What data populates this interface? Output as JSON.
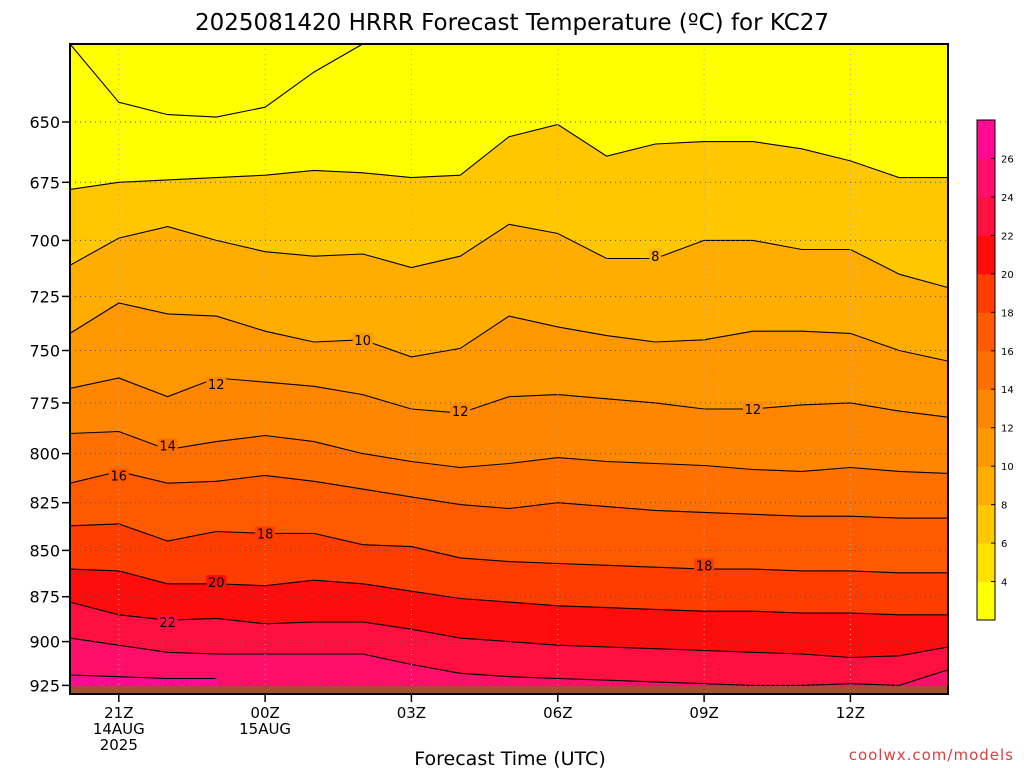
{
  "chart_data": {
    "type": "area",
    "title": "2025081420 HRRR Forecast Temperature (ºC) for KC27",
    "xlabel": "Forecast Time (UTC)",
    "ylabel": "",
    "credit": "coolwx.com/models",
    "x_ticks": [
      {
        "hour": 1,
        "lines": [
          "21Z",
          "14AUG",
          "2025"
        ]
      },
      {
        "hour": 4,
        "lines": [
          "00Z",
          "15AUG"
        ]
      },
      {
        "hour": 7,
        "lines": [
          "03Z"
        ]
      },
      {
        "hour": 10,
        "lines": [
          "06Z"
        ]
      },
      {
        "hour": 13,
        "lines": [
          "09Z"
        ]
      },
      {
        "hour": 16,
        "lines": [
          "12Z"
        ]
      }
    ],
    "xlim": [
      0,
      18
    ],
    "y_ticks": [
      650,
      675,
      700,
      725,
      750,
      775,
      800,
      825,
      850,
      875,
      900,
      925
    ],
    "ylim": [
      619,
      930
    ],
    "y_scale": "log-pressure",
    "surface_pressure": [
      925.5,
      925.5,
      925.5,
      925.5,
      925.5,
      925.5,
      925.5,
      925.5,
      925.5,
      925.5,
      925.5,
      925.5,
      925.5,
      925.5,
      925.5,
      925.5,
      925.5,
      925.5,
      925.5
    ],
    "surface_color": "#a0522d",
    "colorbar": {
      "levels": [
        2,
        4,
        6,
        8,
        10,
        12,
        14,
        16,
        18,
        20,
        22,
        24,
        26,
        28
      ],
      "labels": [
        "4",
        "6",
        "8",
        "10",
        "12",
        "14",
        "16",
        "18",
        "20",
        "22",
        "24",
        "26"
      ],
      "colors": [
        "#ffff00",
        "#ffe100",
        "#ffc700",
        "#ffad00",
        "#ff9800",
        "#ff8600",
        "#ff7000",
        "#ff5a00",
        "#ff3d00",
        "#ff0d0d",
        "#ff1040",
        "#ff0f6a",
        "#ff0a90"
      ]
    },
    "contours": [
      {
        "value": 4,
        "label": "",
        "pressure": [
          619,
          642,
          647,
          648,
          644,
          630,
          619,
          null,
          null,
          null,
          null,
          null,
          null,
          null,
          null,
          null,
          null,
          null,
          null
        ]
      },
      {
        "value": 6,
        "label": "",
        "pressure": [
          678,
          675,
          674,
          673,
          672,
          670,
          671,
          673,
          672,
          656,
          651,
          664,
          659,
          658,
          658,
          661,
          666,
          673,
          673
        ]
      },
      {
        "value": 8,
        "label": "8",
        "pressure": [
          711,
          699,
          694,
          700,
          705,
          707,
          706,
          712,
          707,
          693,
          697,
          708,
          708,
          700,
          700,
          704,
          704,
          715,
          721
        ]
      },
      {
        "value": 10,
        "label": "10",
        "pressure": [
          742,
          728,
          733,
          734,
          741,
          746,
          745,
          753,
          749,
          734,
          739,
          743,
          746,
          745,
          741,
          741,
          742,
          750,
          755
        ]
      },
      {
        "value": 12,
        "label": "12",
        "pressure": [
          768,
          763,
          772,
          763,
          765,
          767,
          771,
          778,
          780,
          772,
          771,
          773,
          775,
          778,
          778,
          776,
          775,
          779,
          782
        ]
      },
      {
        "value": 14,
        "label": "14",
        "pressure": [
          790,
          789,
          798,
          794,
          791,
          794,
          800,
          804,
          807,
          805,
          802,
          804,
          805,
          806,
          808,
          809,
          807,
          809,
          810
        ]
      },
      {
        "value": 16,
        "label": "16",
        "pressure": [
          815,
          809,
          815,
          814,
          811,
          814,
          818,
          822,
          826,
          828,
          825,
          827,
          829,
          830,
          831,
          832,
          832,
          833,
          833
        ]
      },
      {
        "value": 18,
        "label": "18",
        "pressure": [
          837,
          836,
          845,
          840,
          841,
          841,
          847,
          848,
          854,
          856,
          857,
          858,
          859,
          860,
          860,
          861,
          861,
          862,
          862
        ]
      },
      {
        "value": 20,
        "label": "20",
        "pressure": [
          860,
          861,
          868,
          868,
          869,
          866,
          868,
          872,
          876,
          878,
          880,
          881,
          882,
          883,
          883,
          884,
          884,
          885,
          885
        ]
      },
      {
        "value": 22,
        "label": "22",
        "pressure": [
          878,
          885,
          888,
          887,
          890,
          889,
          889,
          893,
          898,
          900,
          902,
          903,
          904,
          905,
          906,
          907,
          909,
          908,
          903
        ]
      },
      {
        "value": 24,
        "label": "",
        "pressure": [
          898,
          902,
          906,
          907,
          907,
          907,
          907,
          913,
          918,
          920,
          921,
          922,
          923,
          924,
          925,
          925,
          924,
          925,
          916
        ]
      },
      {
        "value": 26,
        "label": "",
        "pressure": [
          919,
          920,
          921,
          921,
          null,
          null,
          null,
          null,
          null,
          null,
          null,
          null,
          null,
          null,
          null,
          null,
          null,
          null,
          null
        ]
      }
    ],
    "contour_labels": [
      {
        "value": 8,
        "hour": 12,
        "pressure": 707
      },
      {
        "value": 10,
        "hour": 6,
        "pressure": 745
      },
      {
        "value": 12,
        "hour": 3,
        "pressure": 766
      },
      {
        "value": 12,
        "hour": 8,
        "pressure": 779
      },
      {
        "value": 12,
        "hour": 14,
        "pressure": 778
      },
      {
        "value": 14,
        "hour": 2,
        "pressure": 796
      },
      {
        "value": 16,
        "hour": 1,
        "pressure": 811
      },
      {
        "value": 18,
        "hour": 4,
        "pressure": 841
      },
      {
        "value": 18,
        "hour": 13,
        "pressure": 858
      },
      {
        "value": 20,
        "hour": 3,
        "pressure": 867
      },
      {
        "value": 22,
        "hour": 2,
        "pressure": 889
      }
    ]
  }
}
